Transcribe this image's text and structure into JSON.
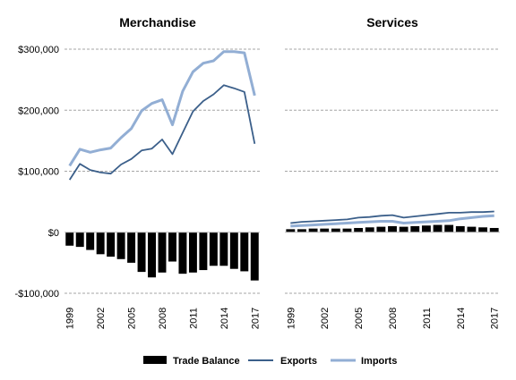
{
  "chart_data": [
    {
      "type": "bar+line",
      "title": "Merchandise",
      "ylim": [
        -100000,
        300000
      ],
      "yticks": [
        -100000,
        0,
        100000,
        200000,
        300000
      ],
      "ytick_labels": [
        "-$100,000",
        "$0",
        "$100,000",
        "$200,000",
        "$300,000"
      ],
      "grid": true,
      "x": [
        1999,
        2000,
        2001,
        2002,
        2003,
        2004,
        2005,
        2006,
        2007,
        2008,
        2009,
        2010,
        2011,
        2012,
        2013,
        2014,
        2015,
        2016,
        2017
      ],
      "xtick_labels": [
        "1999",
        "2002",
        "2005",
        "2008",
        "2011",
        "2014",
        "2017"
      ],
      "series": [
        {
          "name": "Trade Balance",
          "kind": "bar",
          "color": "#000000",
          "values": [
            -22000,
            -24000,
            -29000,
            -36000,
            -40000,
            -44000,
            -50000,
            -65000,
            -74000,
            -66000,
            -48000,
            -68000,
            -66000,
            -62000,
            -55000,
            -55000,
            -60000,
            -64000,
            -79000
          ]
        },
        {
          "name": "Exports",
          "kind": "line",
          "color": "#3b5f8a",
          "values": [
            86000,
            112000,
            102000,
            98000,
            96000,
            111000,
            120000,
            134000,
            137000,
            152000,
            128000,
            163000,
            198000,
            215000,
            226000,
            241000,
            236000,
            230000,
            145000
          ]
        },
        {
          "name": "Imports",
          "kind": "line",
          "color": "#92aed4",
          "values": [
            109000,
            136000,
            131000,
            135000,
            138000,
            155000,
            170000,
            199000,
            211000,
            217000,
            176000,
            231000,
            263000,
            277000,
            281000,
            296000,
            296000,
            294000,
            224000
          ]
        }
      ]
    },
    {
      "type": "bar+line",
      "title": "Services",
      "ylim": [
        -100000,
        300000
      ],
      "grid": true,
      "x": [
        1999,
        2000,
        2001,
        2002,
        2003,
        2004,
        2005,
        2006,
        2007,
        2008,
        2009,
        2010,
        2011,
        2012,
        2013,
        2014,
        2015,
        2016,
        2017
      ],
      "xtick_labels": [
        "1999",
        "2002",
        "2005",
        "2008",
        "2011",
        "2014",
        "2017"
      ],
      "series": [
        {
          "name": "Trade Balance",
          "kind": "bar",
          "color": "#000000",
          "values": [
            5000,
            5000,
            6000,
            6000,
            6000,
            6000,
            7000,
            8000,
            9000,
            10000,
            9000,
            10000,
            11000,
            12000,
            12000,
            10000,
            9000,
            8000,
            7000
          ]
        },
        {
          "name": "Exports",
          "kind": "line",
          "color": "#3b5f8a",
          "values": [
            15000,
            17000,
            18000,
            19000,
            20000,
            21000,
            24000,
            25000,
            27000,
            28000,
            24000,
            26000,
            28000,
            30000,
            32000,
            32000,
            33000,
            33000,
            34000
          ]
        },
        {
          "name": "Imports",
          "kind": "line",
          "color": "#92aed4",
          "values": [
            10000,
            11000,
            12000,
            13000,
            14000,
            15000,
            16000,
            17000,
            18000,
            18000,
            15000,
            16000,
            17000,
            18000,
            19000,
            22000,
            24000,
            26000,
            27000
          ]
        }
      ]
    }
  ],
  "legend": {
    "placement": "bottom",
    "items": [
      {
        "label": "Trade Balance",
        "kind": "bar",
        "color": "#000000"
      },
      {
        "label": "Exports",
        "kind": "line",
        "color": "#3b5f8a"
      },
      {
        "label": "Imports",
        "kind": "line",
        "color": "#92aed4"
      }
    ]
  }
}
